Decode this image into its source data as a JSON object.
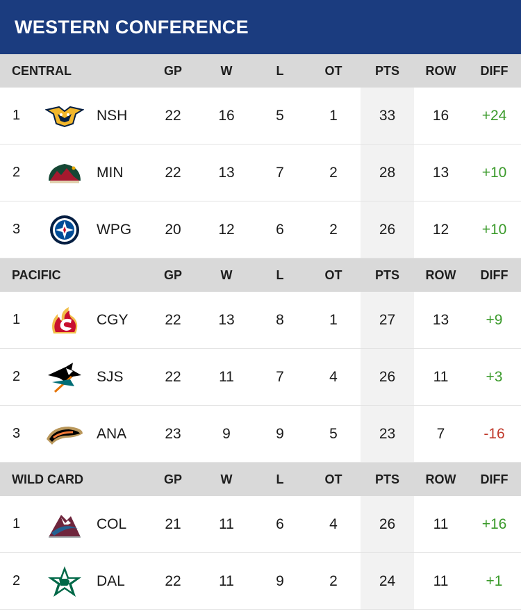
{
  "title": "WESTERN CONFERENCE",
  "columns": [
    "GP",
    "W",
    "L",
    "OT",
    "PTS",
    "ROW",
    "DIFF"
  ],
  "colors": {
    "header_bg": "#1b3c7f",
    "positive": "#3a9a2a",
    "negative": "#c0392b"
  },
  "divisions": [
    {
      "name": "CENTRAL",
      "teams": [
        {
          "rank": "1",
          "abbr": "NSH",
          "logo": "predators-logo",
          "gp": "22",
          "w": "16",
          "l": "5",
          "ot": "1",
          "pts": "33",
          "row": "16",
          "diff": "+24"
        },
        {
          "rank": "2",
          "abbr": "MIN",
          "logo": "wild-logo",
          "gp": "22",
          "w": "13",
          "l": "7",
          "ot": "2",
          "pts": "28",
          "row": "13",
          "diff": "+10"
        },
        {
          "rank": "3",
          "abbr": "WPG",
          "logo": "jets-logo",
          "gp": "20",
          "w": "12",
          "l": "6",
          "ot": "2",
          "pts": "26",
          "row": "12",
          "diff": "+10"
        }
      ]
    },
    {
      "name": "PACIFIC",
      "teams": [
        {
          "rank": "1",
          "abbr": "CGY",
          "logo": "flames-logo",
          "gp": "22",
          "w": "13",
          "l": "8",
          "ot": "1",
          "pts": "27",
          "row": "13",
          "diff": "+9"
        },
        {
          "rank": "2",
          "abbr": "SJS",
          "logo": "sharks-logo",
          "gp": "22",
          "w": "11",
          "l": "7",
          "ot": "4",
          "pts": "26",
          "row": "11",
          "diff": "+3"
        },
        {
          "rank": "3",
          "abbr": "ANA",
          "logo": "ducks-logo",
          "gp": "23",
          "w": "9",
          "l": "9",
          "ot": "5",
          "pts": "23",
          "row": "7",
          "diff": "-16"
        }
      ]
    },
    {
      "name": "WILD CARD",
      "teams": [
        {
          "rank": "1",
          "abbr": "COL",
          "logo": "avalanche-logo",
          "gp": "21",
          "w": "11",
          "l": "6",
          "ot": "4",
          "pts": "26",
          "row": "11",
          "diff": "+16"
        },
        {
          "rank": "2",
          "abbr": "DAL",
          "logo": "stars-logo",
          "gp": "22",
          "w": "11",
          "l": "9",
          "ot": "2",
          "pts": "24",
          "row": "11",
          "diff": "+1"
        }
      ]
    }
  ]
}
